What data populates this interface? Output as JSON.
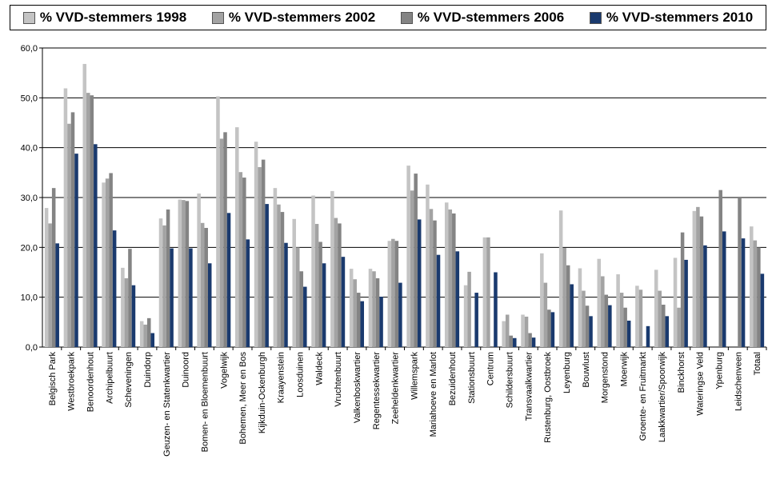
{
  "chart_data": {
    "type": "bar",
    "title": "",
    "xlabel": "",
    "ylabel": "",
    "ylim": [
      0,
      60
    ],
    "yticks": [
      "0,0",
      "10,0",
      "20,0",
      "30,0",
      "40,0",
      "50,0",
      "60,0"
    ],
    "grid": "horizontal",
    "legend_position": "top",
    "categories": [
      "Belgisch Park",
      "Westbroekpark",
      "Benoordenhout",
      "Archipelbuurt",
      "Scheveningen",
      "Duindorp",
      "Geuzen- en Statenkwartier",
      "Duinoord",
      "Bomen- en Bloemenbuurt",
      "Vogelwijk",
      "Bohemen, Meer en Bos",
      "Kijkduin-Ockenburgh",
      "Kraayenstein",
      "Loosduinen",
      "Waldeck",
      "Vruchtenbuurt",
      "Valkenboskwartier",
      "Regentessekwartier",
      "Zeeheldenkwartier",
      "Willemspark",
      "Mariahoeve en Marlot",
      "Bezuidenhout",
      "Stationsbuurt",
      "Centrum",
      "Schildersbuurt",
      "Transvaalkwartier",
      "Rustenburg, Oostbroek",
      "Leyenburg",
      "Bouwlust",
      "Morgenstond",
      "Moerwijk",
      "Groente- en Fruitmarkt",
      "Laakkwartier/Spoorwijk",
      "Binckhorst",
      "Wateringse Veld",
      "Ypenburg",
      "Leidschenveen",
      "Totaal"
    ],
    "series": [
      {
        "name": "% VVD-stemmers 1998",
        "color": "#c4c4c4",
        "values": [
          27.9,
          51.9,
          56.8,
          33.0,
          15.9,
          5.2,
          25.8,
          29.6,
          30.8,
          50.3,
          44.1,
          41.2,
          31.9,
          25.7,
          30.4,
          31.3,
          15.7,
          15.7,
          21.3,
          36.4,
          32.6,
          29.0,
          12.4,
          22.0,
          5.2,
          6.5,
          18.8,
          27.4,
          15.8,
          17.7,
          14.6,
          12.3,
          15.5,
          17.9,
          27.3,
          null,
          null,
          24.2
        ]
      },
      {
        "name": "% VVD-stemmers 2002",
        "color": "#a3a3a3",
        "values": [
          24.8,
          44.8,
          51.0,
          33.8,
          13.8,
          4.5,
          24.4,
          29.5,
          24.9,
          41.8,
          35.1,
          36.1,
          28.6,
          20.0,
          24.7,
          25.9,
          13.6,
          15.2,
          21.7,
          31.4,
          27.7,
          27.6,
          15.1,
          22.0,
          6.5,
          6.1,
          12.9,
          19.9,
          11.3,
          14.2,
          10.9,
          11.5,
          11.3,
          7.9,
          28.1,
          null,
          null,
          21.4
        ]
      },
      {
        "name": "% VVD-stemmers 2006",
        "color": "#848484",
        "values": [
          31.9,
          47.1,
          50.5,
          34.9,
          19.7,
          5.8,
          27.6,
          29.3,
          23.9,
          43.1,
          34.0,
          37.6,
          27.1,
          15.2,
          21.1,
          24.8,
          10.9,
          13.8,
          21.3,
          34.8,
          25.4,
          26.8,
          null,
          null,
          2.3,
          2.8,
          7.5,
          16.4,
          8.3,
          10.5,
          7.9,
          null,
          8.5,
          23.0,
          26.2,
          31.5,
          30.0,
          20.0
        ]
      },
      {
        "name": "% VVD-stemmers 2010",
        "color": "#1a3a6e",
        "values": [
          20.8,
          38.8,
          40.7,
          23.4,
          12.4,
          2.8,
          19.8,
          19.8,
          16.8,
          26.9,
          21.6,
          28.7,
          20.9,
          12.1,
          16.8,
          18.1,
          9.2,
          10.1,
          12.9,
          25.6,
          18.5,
          19.2,
          10.9,
          15.0,
          1.8,
          1.9,
          7.0,
          12.6,
          6.2,
          8.4,
          5.3,
          4.2,
          6.2,
          17.5,
          20.4,
          23.2,
          21.8,
          14.7
        ]
      }
    ]
  }
}
